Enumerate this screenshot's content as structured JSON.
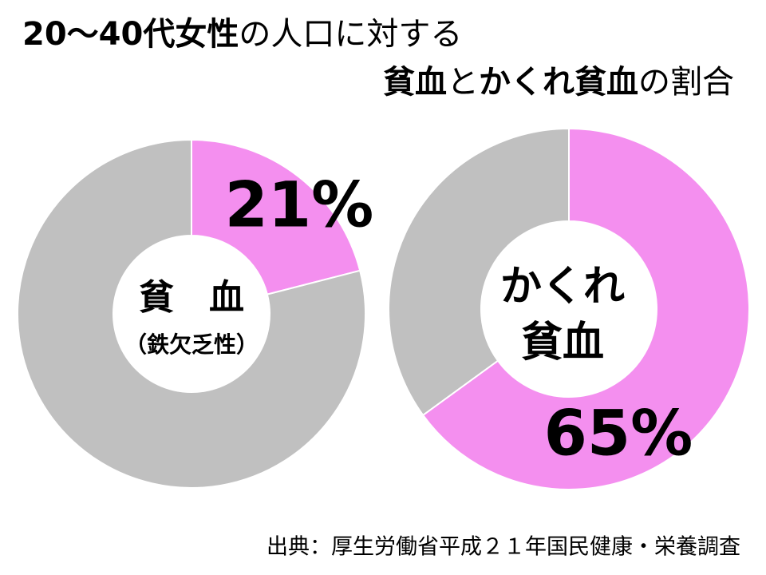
{
  "title_lines": [
    [
      "20～40代女性",
      "の人口に対する"
    ],
    [
      "貧血",
      "と",
      "かくれ貧血",
      "の割合"
    ]
  ],
  "chart_data": [
    {
      "type": "pie",
      "donut": true,
      "center_labels": [
        "貧　血",
        "（鉄欠乏性）"
      ],
      "values": [
        21,
        79
      ],
      "value_labels": [
        "21%",
        null
      ],
      "colors": [
        "#f48fef",
        "#c0c0c0"
      ]
    },
    {
      "type": "pie",
      "donut": true,
      "center_labels": [
        "かくれ",
        "貧血"
      ],
      "values": [
        65,
        35
      ],
      "value_labels": [
        "65%",
        null
      ],
      "colors": [
        "#f48fef",
        "#c0c0c0"
      ]
    }
  ],
  "source": "出典：厚生労働省平成２１年国民健康・栄養調査"
}
